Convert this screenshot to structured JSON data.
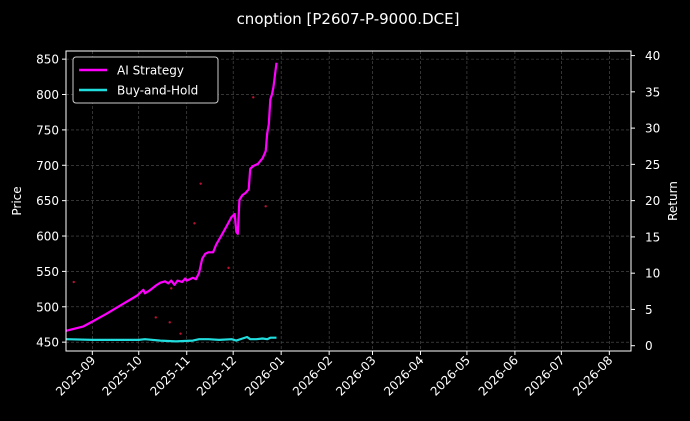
{
  "chart_data": {
    "type": "line",
    "title": "cnoption [P2607-P-9000.DCE]",
    "xlabel": "",
    "ylabel": "Price",
    "ylabel_right": "Return",
    "x_axis": {
      "type": "date",
      "range": [
        "2025-08-15",
        "2026-08-15"
      ],
      "ticks": [
        "2025-09-01",
        "2025-10-01",
        "2025-11-01",
        "2025-12-01",
        "2026-01-01",
        "2026-02-01",
        "2026-03-01",
        "2026-04-01",
        "2026-05-01",
        "2026-06-01",
        "2026-07-01",
        "2026-08-01"
      ],
      "tick_labels": [
        "2025-09",
        "2025-10",
        "2025-11",
        "2025-12",
        "2026-01",
        "2026-02",
        "2026-03",
        "2026-04",
        "2026-05",
        "2026-06",
        "2026-07",
        "2026-08"
      ]
    },
    "y_axis_left": {
      "range": [
        437.5,
        861.5
      ],
      "ticks": [
        450,
        500,
        550,
        600,
        650,
        700,
        750,
        800,
        850
      ]
    },
    "y_axis_right": {
      "range": [
        -0.73,
        40.63
      ],
      "ticks": [
        0,
        5,
        10,
        15,
        20,
        25,
        30,
        35,
        40
      ]
    },
    "grid": true,
    "legend_placement": "top-left",
    "colors": {
      "background": "#000000",
      "ai_strategy": "#ff00ff",
      "buy_and_hold": "#22dddd",
      "grid": "#555555",
      "text": "#ffffff",
      "scatter": "#bb1133"
    },
    "series": [
      {
        "name": "AI Strategy",
        "axis": "left",
        "color": "#ff00ff",
        "points": [
          [
            "2025-08-15",
            466
          ],
          [
            "2025-08-26",
            472
          ],
          [
            "2025-09-01",
            479
          ],
          [
            "2025-09-10",
            490
          ],
          [
            "2025-09-20",
            503
          ],
          [
            "2025-09-30",
            516
          ],
          [
            "2025-10-02",
            520
          ],
          [
            "2025-10-04",
            524
          ],
          [
            "2025-10-05",
            519
          ],
          [
            "2025-10-08",
            523
          ],
          [
            "2025-10-12",
            530
          ],
          [
            "2025-10-15",
            534
          ],
          [
            "2025-10-18",
            536
          ],
          [
            "2025-10-20",
            533
          ],
          [
            "2025-10-22",
            537
          ],
          [
            "2025-10-24",
            531
          ],
          [
            "2025-10-26",
            537
          ],
          [
            "2025-10-29",
            535
          ],
          [
            "2025-10-31",
            540
          ],
          [
            "2025-11-01",
            537
          ],
          [
            "2025-11-03",
            539
          ],
          [
            "2025-11-05",
            541
          ],
          [
            "2025-11-07",
            539
          ],
          [
            "2025-11-09",
            548
          ],
          [
            "2025-11-11",
            568
          ],
          [
            "2025-11-13",
            575
          ],
          [
            "2025-11-15",
            577
          ],
          [
            "2025-11-18",
            577
          ],
          [
            "2025-11-20",
            588
          ],
          [
            "2025-11-24",
            603
          ],
          [
            "2025-11-27",
            615
          ],
          [
            "2025-11-30",
            627
          ],
          [
            "2025-12-02",
            631
          ],
          [
            "2025-12-03",
            606
          ],
          [
            "2025-12-04",
            603
          ],
          [
            "2025-12-05",
            651
          ],
          [
            "2025-12-07",
            658
          ],
          [
            "2025-12-09",
            661
          ],
          [
            "2025-12-11",
            666
          ],
          [
            "2025-12-12",
            695
          ],
          [
            "2025-12-14",
            699
          ],
          [
            "2025-12-17",
            702
          ],
          [
            "2025-12-20",
            710
          ],
          [
            "2025-12-22",
            720
          ],
          [
            "2025-12-23",
            745
          ],
          [
            "2025-12-24",
            758
          ],
          [
            "2025-12-25",
            793
          ],
          [
            "2025-12-26",
            800
          ],
          [
            "2025-12-27",
            810
          ],
          [
            "2025-12-29",
            845
          ]
        ]
      },
      {
        "name": "Buy-and-Hold",
        "axis": "right",
        "color": "#22dddd",
        "points": [
          [
            "2025-08-15",
            0.9
          ],
          [
            "2025-09-01",
            0.8
          ],
          [
            "2025-09-15",
            0.8
          ],
          [
            "2025-10-01",
            0.8
          ],
          [
            "2025-10-05",
            0.9
          ],
          [
            "2025-10-15",
            0.7
          ],
          [
            "2025-10-25",
            0.6
          ],
          [
            "2025-11-05",
            0.7
          ],
          [
            "2025-11-09",
            0.9
          ],
          [
            "2025-11-15",
            0.9
          ],
          [
            "2025-11-22",
            0.8
          ],
          [
            "2025-11-30",
            0.9
          ],
          [
            "2025-12-03",
            0.7
          ],
          [
            "2025-12-07",
            1.0
          ],
          [
            "2025-12-10",
            1.2
          ],
          [
            "2025-12-12",
            0.9
          ],
          [
            "2025-12-16",
            0.9
          ],
          [
            "2025-12-20",
            1.0
          ],
          [
            "2025-12-23",
            0.9
          ],
          [
            "2025-12-25",
            1.1
          ],
          [
            "2025-12-29",
            1.1
          ]
        ]
      }
    ],
    "scatter_points": [
      [
        "2025-08-20",
        535
      ],
      [
        "2025-10-12",
        485
      ],
      [
        "2025-10-21",
        478
      ],
      [
        "2025-10-22",
        526
      ],
      [
        "2025-10-28",
        462
      ],
      [
        "2025-11-06",
        618
      ],
      [
        "2025-11-10",
        674
      ],
      [
        "2025-11-28",
        555
      ],
      [
        "2025-12-14",
        796
      ],
      [
        "2025-12-22",
        642
      ]
    ],
    "legend": [
      {
        "label": "AI Strategy",
        "color": "#ff00ff"
      },
      {
        "label": "Buy-and-Hold",
        "color": "#22dddd"
      }
    ]
  }
}
